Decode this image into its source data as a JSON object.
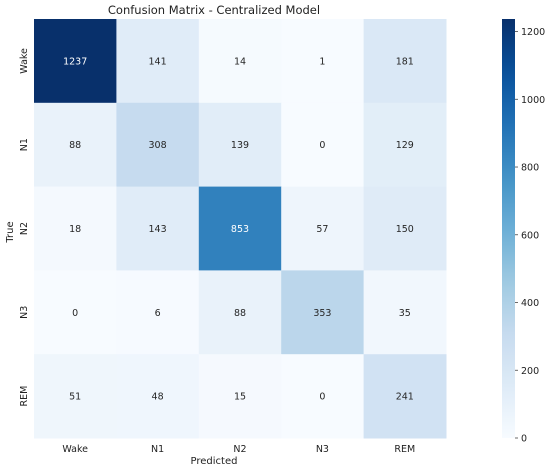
{
  "chart_data": {
    "type": "heatmap",
    "title": "Confusion Matrix - Centralized Model",
    "xlabel": "Predicted",
    "ylabel": "True",
    "x_categories": [
      "Wake",
      "N1",
      "N2",
      "N3",
      "REM"
    ],
    "y_categories": [
      "Wake",
      "N1",
      "N2",
      "N3",
      "REM"
    ],
    "values": [
      [
        1237,
        141,
        14,
        1,
        181
      ],
      [
        88,
        308,
        139,
        0,
        129
      ],
      [
        18,
        143,
        853,
        57,
        150
      ],
      [
        0,
        6,
        88,
        353,
        35
      ],
      [
        51,
        48,
        15,
        0,
        241
      ]
    ],
    "colorbar": {
      "min": 0,
      "max": 1237,
      "ticks": [
        "0",
        "200",
        "400",
        "600",
        "800",
        "1000",
        "1200"
      ],
      "tick_values": [
        0,
        200,
        400,
        600,
        800,
        1000,
        1200
      ],
      "colormap": "Blues"
    }
  }
}
